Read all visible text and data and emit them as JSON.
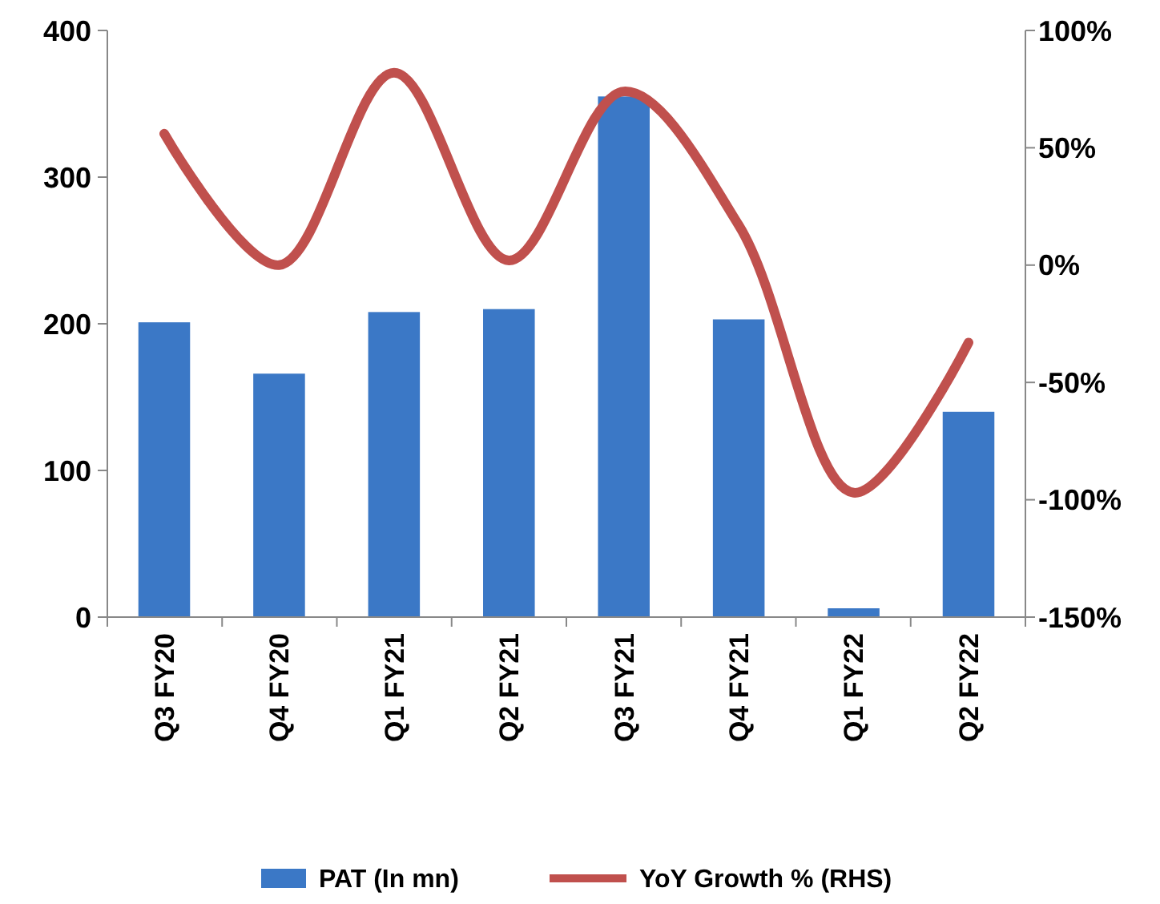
{
  "chart_data": {
    "type": "bar",
    "categories": [
      "Q3 FY20",
      "Q4 FY20",
      "Q1 FY21",
      "Q2 FY21",
      "Q3 FY21",
      "Q4 FY21",
      "Q1 FY22",
      "Q2 FY22"
    ],
    "series": [
      {
        "name": "PAT (In mn)",
        "color": "#3b78c6",
        "values": [
          201,
          166,
          208,
          210,
          355,
          203,
          6,
          140
        ]
      },
      {
        "name": "YoY Growth % (RHS)",
        "type": "line",
        "axis": "y2",
        "color": "#c0504d",
        "values": [
          56,
          0,
          82,
          2,
          74,
          17,
          -97,
          -33
        ]
      }
    ],
    "ylim": [
      0,
      400
    ],
    "yticks": [
      0,
      100,
      200,
      300,
      400
    ],
    "y2lim": [
      -150,
      100
    ],
    "y2ticks": [
      {
        "value": -150,
        "label": "-150%"
      },
      {
        "value": -100,
        "label": "-100%"
      },
      {
        "value": -50,
        "label": "-50%"
      },
      {
        "value": 0,
        "label": "0%"
      },
      {
        "value": 50,
        "label": "50%"
      },
      {
        "value": 100,
        "label": "100%"
      }
    ],
    "legend": "bottom",
    "grid": false
  }
}
